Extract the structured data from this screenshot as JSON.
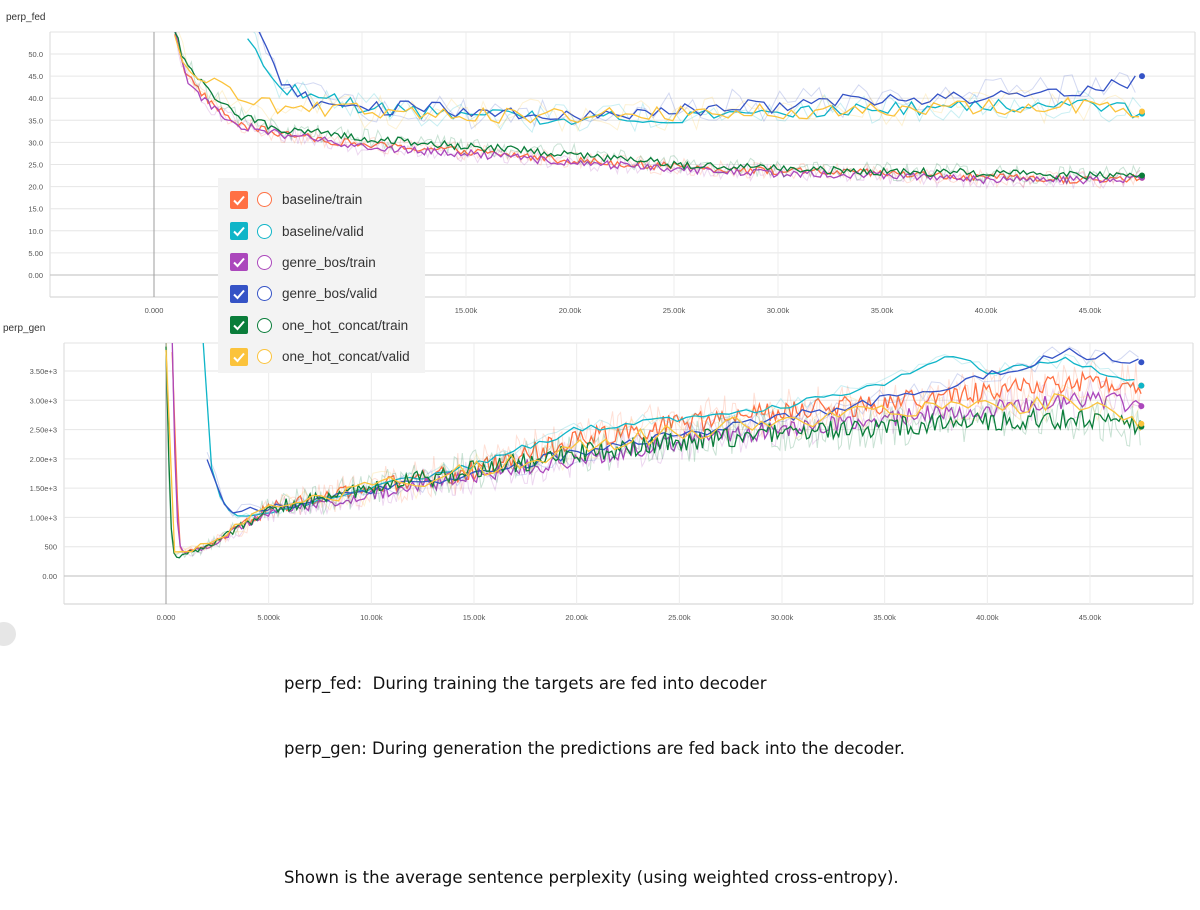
{
  "legend": [
    {
      "name": "baseline/train",
      "color": "#ff7043",
      "checked": true
    },
    {
      "name": "baseline/valid",
      "color": "#0fb5c8",
      "checked": true
    },
    {
      "name": "genre_bos/train",
      "color": "#ab47bc",
      "checked": true
    },
    {
      "name": "genre_bos/valid",
      "color": "#3553c6",
      "checked": true
    },
    {
      "name": "one_hot_concat/train",
      "color": "#0a7d3a",
      "checked": true
    },
    {
      "name": "one_hot_concat/valid",
      "color": "#fbc33c",
      "checked": true
    }
  ],
  "caption": {
    "line1": "perp_fed:  During training the targets are fed into decoder",
    "line2": "perp_gen: During generation the predictions are fed back into the decoder.",
    "line3": "Shown is the average sentence perplexity (using weighted cross-entropy)."
  },
  "chart_data": [
    {
      "type": "line",
      "title": "perp_fed",
      "xlabel": "",
      "ylabel": "",
      "xlim": [
        -3500,
        48500
      ],
      "ylim": [
        -5,
        55
      ],
      "x_ticks": [
        0,
        5000,
        10000,
        15000,
        20000,
        25000,
        30000,
        35000,
        40000,
        45000
      ],
      "x_tick_labels": [
        "0.000",
        "5.000k",
        "10.00k",
        "15.00k",
        "20.00k",
        "25.00k",
        "30.00k",
        "35.00k",
        "40.00k",
        "45.00k"
      ],
      "y_ticks": [
        0,
        5,
        10,
        15,
        20,
        25,
        30,
        35,
        40,
        45,
        50
      ],
      "y_tick_labels": [
        "0.00",
        "5.00",
        "10.0",
        "15.0",
        "20.0",
        "25.0",
        "30.0",
        "35.0",
        "40.0",
        "45.0",
        "50.0"
      ],
      "grid": true,
      "series": [
        {
          "name": "baseline/train",
          "x": [
            1000,
            1500,
            2500,
            4000,
            6000,
            10000,
            15000,
            20000,
            25000,
            30000,
            35000,
            40000,
            45000,
            47500
          ],
          "values": [
            55,
            46,
            40,
            34,
            32,
            29.5,
            28,
            26,
            24.5,
            23.5,
            23,
            22,
            21.5,
            22
          ]
        },
        {
          "name": "baseline/valid",
          "x": [
            4500,
            5500,
            6500,
            10000,
            15000,
            20000,
            25000,
            30000,
            35000,
            40000,
            45000,
            47500
          ],
          "values": [
            55,
            45,
            42,
            38,
            36,
            35.5,
            36,
            37,
            37.5,
            38,
            39,
            36.5
          ]
        },
        {
          "name": "genre_bos/train",
          "x": [
            1000,
            1500,
            2500,
            4000,
            6000,
            10000,
            15000,
            20000,
            25000,
            30000,
            35000,
            40000,
            45000,
            47500
          ],
          "values": [
            55,
            45,
            39,
            34,
            32,
            29,
            27.5,
            25.5,
            24,
            23,
            22.5,
            21.5,
            21.5,
            22
          ]
        },
        {
          "name": "genre_bos/valid",
          "x": [
            5000,
            6000,
            7000,
            10000,
            15000,
            20000,
            25000,
            30000,
            35000,
            40000,
            45000,
            47500
          ],
          "values": [
            55,
            44,
            40,
            38,
            37,
            36.5,
            37.5,
            38.5,
            40,
            40.5,
            41.5,
            45
          ]
        },
        {
          "name": "one_hot_concat/train",
          "x": [
            1000,
            1500,
            2500,
            4000,
            6000,
            10000,
            15000,
            20000,
            25000,
            30000,
            35000,
            40000,
            45000,
            47500
          ],
          "values": [
            55,
            48,
            42,
            36,
            33,
            31,
            29,
            27.5,
            25,
            24,
            23.5,
            23,
            22.5,
            22.5
          ]
        },
        {
          "name": "one_hot_concat/valid",
          "x": [
            1000,
            1500,
            2500,
            4000,
            6000,
            10000,
            15000,
            20000,
            25000,
            30000,
            35000,
            40000,
            45000,
            47500
          ],
          "values": [
            55,
            48,
            44,
            40,
            38,
            37,
            36,
            36,
            36.5,
            37,
            37.5,
            38,
            38.5,
            37
          ]
        }
      ]
    },
    {
      "type": "line",
      "title": "perp_gen",
      "xlabel": "",
      "ylabel": "",
      "xlim": [
        -2500,
        49000
      ],
      "ylim": [
        -500,
        4000
      ],
      "x_ticks": [
        0,
        5000,
        10000,
        15000,
        20000,
        25000,
        30000,
        35000,
        40000,
        45000
      ],
      "x_tick_labels": [
        "0.000",
        "5.000k",
        "10.00k",
        "15.00k",
        "20.00k",
        "25.00k",
        "30.00k",
        "35.00k",
        "40.00k",
        "45.00k"
      ],
      "y_ticks": [
        0,
        500,
        1000,
        1500,
        2000,
        2500,
        3000,
        3500
      ],
      "y_tick_labels": [
        "0.00",
        "500",
        "1.00e+3",
        "1.50e+3",
        "2.00e+3",
        "2.50e+3",
        "3.00e+3",
        "3.50e+3"
      ],
      "grid": true,
      "series": [
        {
          "name": "baseline/train",
          "x": [
            300,
            500,
            700,
            1000,
            2000,
            3000,
            5000,
            10000,
            15000,
            20000,
            25000,
            30000,
            35000,
            40000,
            45000,
            47500
          ],
          "values": [
            4000,
            1500,
            500,
            400,
            500,
            700,
            1150,
            1500,
            1800,
            2350,
            2600,
            2800,
            2950,
            3150,
            3350,
            3250
          ]
        },
        {
          "name": "baseline/valid",
          "x": [
            1800,
            2000,
            2500,
            3000,
            3500,
            5000,
            10000,
            15000,
            20000,
            25000,
            30000,
            35000,
            38000,
            40000,
            44000,
            47500
          ],
          "values": [
            4000,
            2200,
            1500,
            1150,
            1000,
            1100,
            1500,
            1900,
            2500,
            2700,
            2900,
            3300,
            3800,
            3500,
            3700,
            3250
          ]
        },
        {
          "name": "genre_bos/train",
          "x": [
            300,
            500,
            700,
            1000,
            2000,
            3000,
            5000,
            10000,
            15000,
            20000,
            25000,
            30000,
            35000,
            40000,
            45000,
            47500
          ],
          "values": [
            4000,
            1200,
            450,
            380,
            500,
            700,
            1100,
            1400,
            1700,
            2000,
            2300,
            2500,
            2700,
            2850,
            3050,
            2900
          ]
        },
        {
          "name": "genre_bos/valid",
          "x": [
            2000,
            3000,
            5000,
            10000,
            15000,
            20000,
            25000,
            30000,
            35000,
            40000,
            44000,
            47500
          ],
          "values": [
            2000,
            1100,
            1150,
            1450,
            1750,
            2100,
            2400,
            2700,
            3000,
            3400,
            3800,
            3650
          ]
        },
        {
          "name": "one_hot_concat/train",
          "x": [
            0,
            200,
            400,
            700,
            1000,
            2000,
            3000,
            5000,
            10000,
            15000,
            20000,
            25000,
            30000,
            35000,
            40000,
            45000,
            47500
          ],
          "values": [
            4000,
            1000,
            350,
            330,
            380,
            500,
            700,
            1150,
            1500,
            1800,
            2100,
            2300,
            2450,
            2550,
            2650,
            2700,
            2550
          ]
        },
        {
          "name": "one_hot_concat/valid",
          "x": [
            0,
            200,
            400,
            700,
            1000,
            2000,
            3000,
            5000,
            10000,
            15000,
            20000,
            25000,
            30000,
            35000,
            40000,
            45000,
            47500
          ],
          "values": [
            4000,
            1200,
            400,
            380,
            420,
            550,
            750,
            1150,
            1500,
            1800,
            2200,
            2450,
            2650,
            2800,
            2900,
            3000,
            2600
          ]
        }
      ]
    }
  ]
}
